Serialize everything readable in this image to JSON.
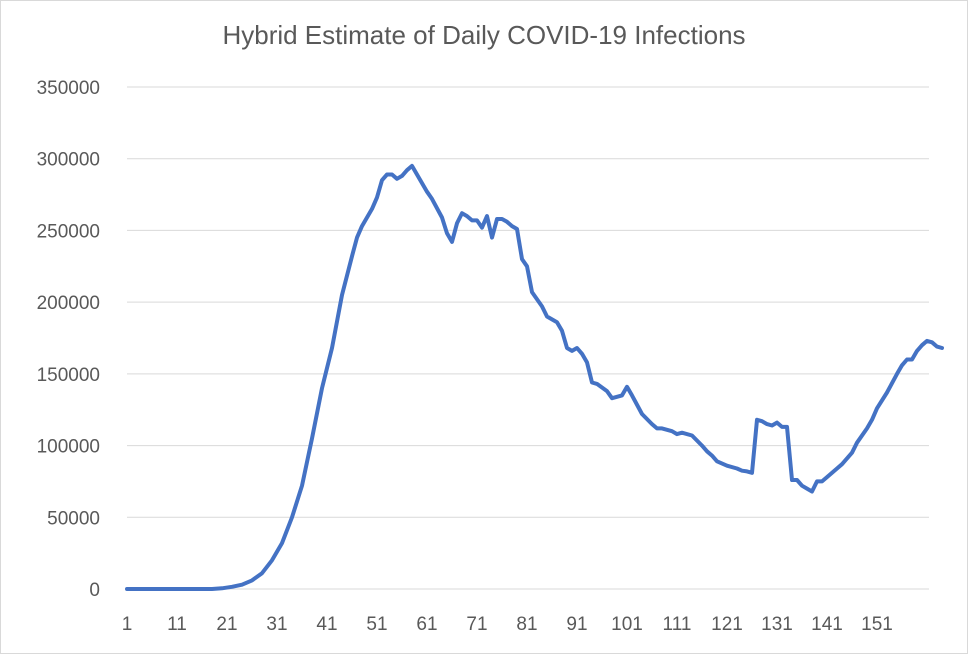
{
  "chart_data": {
    "type": "line",
    "title": "Hybrid Estimate of Daily COVID-19 Infections",
    "xlabel": "",
    "ylabel": "",
    "x_range": [
      1,
      160
    ],
    "ylim": [
      0,
      350000
    ],
    "y_ticks": [
      "0",
      "50000",
      "100000",
      "150000",
      "200000",
      "250000",
      "300000",
      "350000"
    ],
    "x_ticks": [
      "1",
      "11",
      "21",
      "31",
      "41",
      "51",
      "61",
      "71",
      "81",
      "91",
      "101",
      "111",
      "121",
      "131",
      "141",
      "151"
    ],
    "grid": true,
    "legend": "none",
    "colors": {
      "line": "#4472c4",
      "grid": "#d9d9d9",
      "text": "#595959"
    },
    "series": [
      {
        "points": [
          [
            1,
            0
          ],
          [
            18,
            0
          ],
          [
            20,
            500
          ],
          [
            22,
            1500
          ],
          [
            24,
            3000
          ],
          [
            26,
            6000
          ],
          [
            28,
            11000
          ],
          [
            30,
            20000
          ],
          [
            32,
            32000
          ],
          [
            34,
            50000
          ],
          [
            36,
            72000
          ],
          [
            38,
            105000
          ],
          [
            40,
            140000
          ],
          [
            42,
            168000
          ],
          [
            44,
            205000
          ],
          [
            46,
            232000
          ],
          [
            47,
            245000
          ],
          [
            48,
            253000
          ],
          [
            50,
            265000
          ],
          [
            51,
            273000
          ],
          [
            52,
            285000
          ],
          [
            53,
            289000
          ],
          [
            54,
            289000
          ],
          [
            55,
            286000
          ],
          [
            56,
            288000
          ],
          [
            57,
            292000
          ],
          [
            58,
            295000
          ],
          [
            60,
            283000
          ],
          [
            61,
            277000
          ],
          [
            62,
            272000
          ],
          [
            64,
            259000
          ],
          [
            65,
            248000
          ],
          [
            66,
            242000
          ],
          [
            67,
            255000
          ],
          [
            68,
            262000
          ],
          [
            69,
            260000
          ],
          [
            70,
            257000
          ],
          [
            71,
            257000
          ],
          [
            72,
            252000
          ],
          [
            73,
            260000
          ],
          [
            74,
            245000
          ],
          [
            75,
            258000
          ],
          [
            76,
            258000
          ],
          [
            77,
            256000
          ],
          [
            78,
            253000
          ],
          [
            79,
            251000
          ],
          [
            80,
            230000
          ],
          [
            81,
            225000
          ],
          [
            82,
            207000
          ],
          [
            84,
            197000
          ],
          [
            85,
            190000
          ],
          [
            86,
            188000
          ],
          [
            87,
            186000
          ],
          [
            88,
            180000
          ],
          [
            89,
            168000
          ],
          [
            90,
            166000
          ],
          [
            91,
            168000
          ],
          [
            92,
            164000
          ],
          [
            93,
            158000
          ],
          [
            94,
            144000
          ],
          [
            95,
            143000
          ],
          [
            97,
            138000
          ],
          [
            98,
            133000
          ],
          [
            100,
            135000
          ],
          [
            101,
            141000
          ],
          [
            102,
            135000
          ],
          [
            104,
            122000
          ],
          [
            106,
            115000
          ],
          [
            107,
            112000
          ],
          [
            108,
            112000
          ],
          [
            110,
            110000
          ],
          [
            111,
            108000
          ],
          [
            112,
            109000
          ],
          [
            114,
            107000
          ],
          [
            116,
            100000
          ],
          [
            117,
            96000
          ],
          [
            118,
            93000
          ],
          [
            119,
            89000
          ],
          [
            121,
            86000
          ],
          [
            123,
            84000
          ],
          [
            124,
            82500
          ],
          [
            125,
            82000
          ],
          [
            126,
            81000
          ],
          [
            127,
            118000
          ],
          [
            128,
            117000
          ],
          [
            129,
            115000
          ],
          [
            130,
            114000
          ],
          [
            131,
            116000
          ],
          [
            132,
            113000
          ],
          [
            133,
            113000
          ],
          [
            134,
            76000
          ],
          [
            135,
            76000
          ],
          [
            136,
            72000
          ],
          [
            137,
            70000
          ],
          [
            138,
            68000
          ],
          [
            139,
            75000
          ],
          [
            140,
            75000
          ],
          [
            141,
            78000
          ],
          [
            143,
            84000
          ],
          [
            144,
            87000
          ],
          [
            146,
            95000
          ],
          [
            147,
            102000
          ],
          [
            149,
            112000
          ],
          [
            150,
            118000
          ],
          [
            151,
            126000
          ],
          [
            153,
            137000
          ],
          [
            155,
            150000
          ],
          [
            156,
            156000
          ],
          [
            157,
            160000
          ],
          [
            158,
            160000
          ],
          [
            159,
            166000
          ],
          [
            160,
            170000
          ],
          [
            161,
            173000
          ],
          [
            162,
            172000
          ],
          [
            163,
            169000
          ],
          [
            164,
            168000
          ]
        ]
      }
    ]
  }
}
